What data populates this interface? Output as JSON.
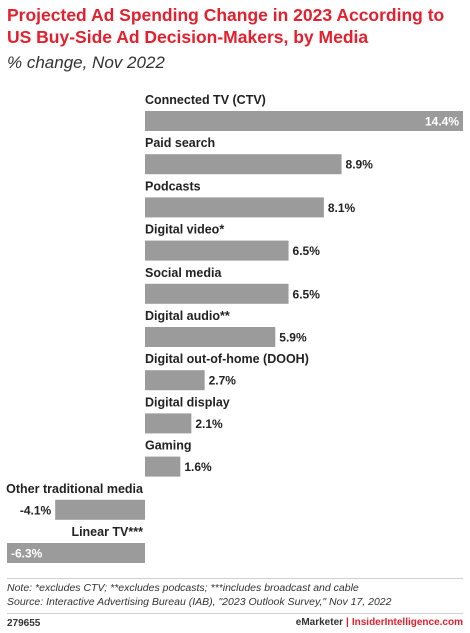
{
  "header": {
    "title": "Projected Ad Spending Change in 2023 According to US Buy-Side Ad Decision-Makers, by Media",
    "subtitle": "% change, Nov 2022"
  },
  "chart_data": {
    "type": "bar",
    "orientation": "horizontal",
    "categories": [
      "Connected TV (CTV)",
      "Paid search",
      "Podcasts",
      "Digital video*",
      "Social media",
      "Digital audio**",
      "Digital out-of-home (DOOH)",
      "Digital display",
      "Gaming",
      "Other traditional media",
      "Linear TV***"
    ],
    "values": [
      14.4,
      8.9,
      8.1,
      6.5,
      6.5,
      5.9,
      2.7,
      2.1,
      1.6,
      -4.1,
      -6.3
    ],
    "value_labels": [
      "14.4%",
      "8.9%",
      "8.1%",
      "6.5%",
      "6.5%",
      "5.9%",
      "2.7%",
      "2.1%",
      "1.6%",
      "-4.1%",
      "-6.3%"
    ],
    "unit": "%",
    "xlim": [
      -6.3,
      14.4
    ],
    "grid": false,
    "bar_color": "#9b9b9b"
  },
  "footer": {
    "note": "Note: *excludes CTV; **excludes podcasts; ***includes broadcast and cable",
    "source": "Source: Interactive Advertising Bureau (IAB), \"2023 Outlook Survey,\" Nov 17, 2022",
    "chart_id": "279655",
    "brand_left": "eMarketer",
    "brand_sep": "|",
    "brand_right": "InsiderIntelligence.com"
  }
}
